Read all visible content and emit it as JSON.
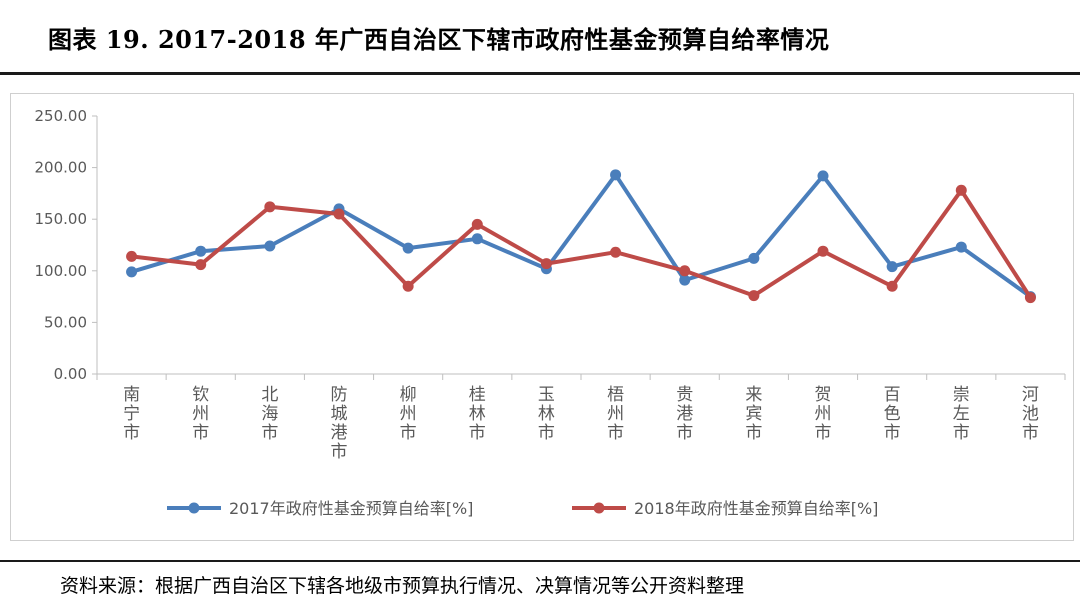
{
  "figure": {
    "title": "图表 19.   2017-2018 年广西自治区下辖市政府性基金预算自给率情况",
    "source": "资料来源：根据广西自治区下辖各地级市预算执行情况、决算情况等公开资料整理"
  },
  "chart_data": {
    "type": "line",
    "title": "",
    "xlabel": "",
    "ylabel": "",
    "ylim": [
      0,
      250
    ],
    "yticks": [
      "0.00",
      "50.00",
      "100.00",
      "150.00",
      "200.00",
      "250.00"
    ],
    "grid": false,
    "legend_position": "bottom",
    "categories": [
      "南宁市",
      "钦州市",
      "北海市",
      "防城港市",
      "柳州市",
      "桂林市",
      "玉林市",
      "梧州市",
      "贵港市",
      "来宾市",
      "贺州市",
      "百色市",
      "崇左市",
      "河池市"
    ],
    "series": [
      {
        "name": "2017年政府性基金预算自给率[%]",
        "color": "#4a7ebb",
        "values": [
          99,
          119,
          124,
          160,
          122,
          131,
          102,
          193,
          91,
          112,
          192,
          104,
          123,
          75
        ]
      },
      {
        "name": "2018年政府性基金预算自给率[%]",
        "color": "#be4b48",
        "values": [
          114,
          106,
          162,
          155,
          85,
          145,
          107,
          118,
          100,
          76,
          119,
          85,
          178,
          74
        ]
      }
    ]
  }
}
